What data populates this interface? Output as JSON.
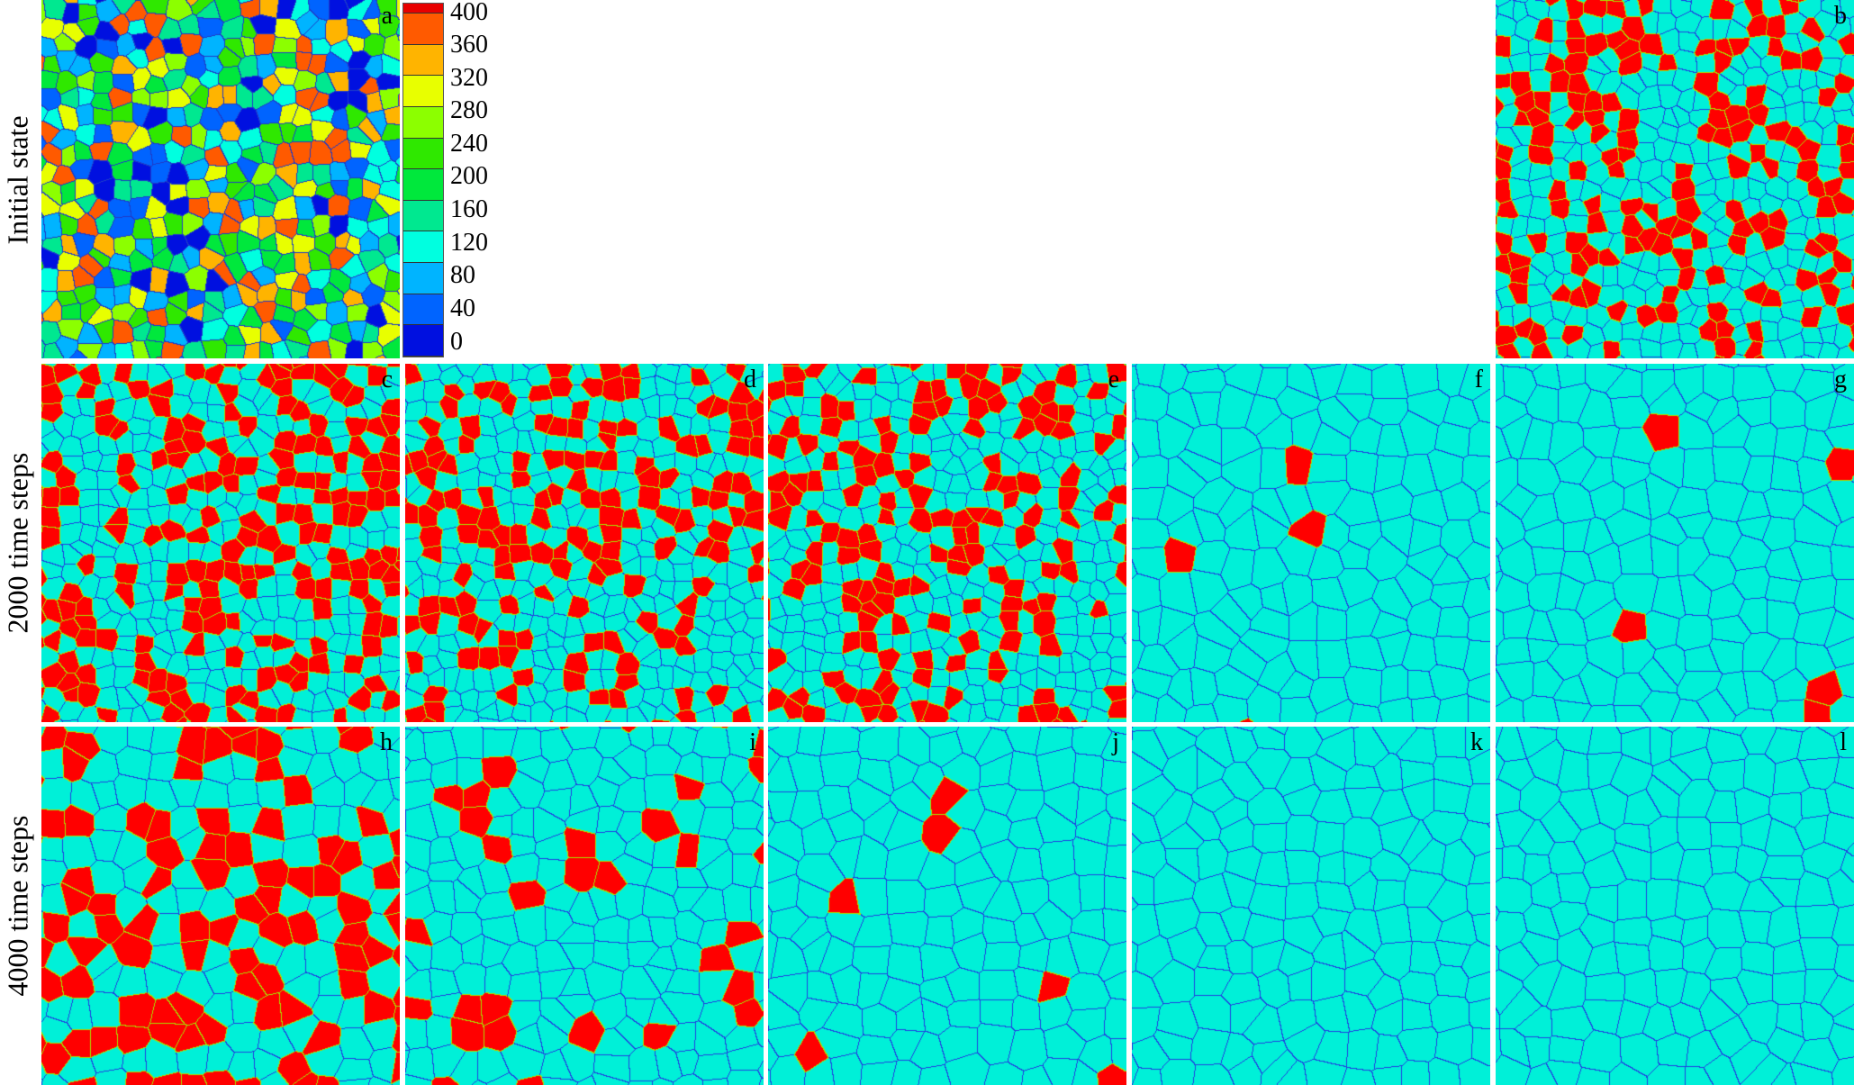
{
  "row_labels": [
    "Initial state",
    "2000 time steps",
    "4000 time steps"
  ],
  "colorbar": {
    "ticks": [
      "400",
      "360",
      "320",
      "280",
      "240",
      "200",
      "160",
      "120",
      "80",
      "40",
      "0"
    ],
    "colors": [
      "#e80000",
      "#ff5a00",
      "#ffb400",
      "#e8ff00",
      "#8cff00",
      "#2fe800",
      "#00e83c",
      "#00e890",
      "#00ffe0",
      "#00b4ff",
      "#0064ff",
      "#0010e0"
    ]
  },
  "colors": {
    "matrix": "#00f0d8",
    "precipitate": "#ff0000",
    "boundary": "#2040e0",
    "precipitate_boundary": "#a8e000"
  },
  "panels": [
    {
      "label": "a",
      "row": 0,
      "col": 0,
      "type": "initial"
    },
    {
      "label": "b",
      "row": 0,
      "col": 4,
      "red_fraction": 0.4
    },
    {
      "label": "c",
      "row": 1,
      "col": 0,
      "red_fraction": 0.4
    },
    {
      "label": "d",
      "row": 1,
      "col": 1,
      "red_fraction": 0.38
    },
    {
      "label": "e",
      "row": 1,
      "col": 2,
      "red_fraction": 0.32
    },
    {
      "label": "f",
      "row": 1,
      "col": 3,
      "red_fraction": 0.04
    },
    {
      "label": "g",
      "row": 1,
      "col": 4,
      "red_fraction": 0.02
    },
    {
      "label": "h",
      "row": 2,
      "col": 0,
      "red_fraction": 0.45
    },
    {
      "label": "i",
      "row": 2,
      "col": 1,
      "red_fraction": 0.15
    },
    {
      "label": "j",
      "row": 2,
      "col": 2,
      "red_fraction": 0.02
    },
    {
      "label": "k",
      "row": 2,
      "col": 3,
      "red_fraction": 0
    },
    {
      "label": "l",
      "row": 2,
      "col": 4,
      "red_fraction": 0
    }
  ]
}
